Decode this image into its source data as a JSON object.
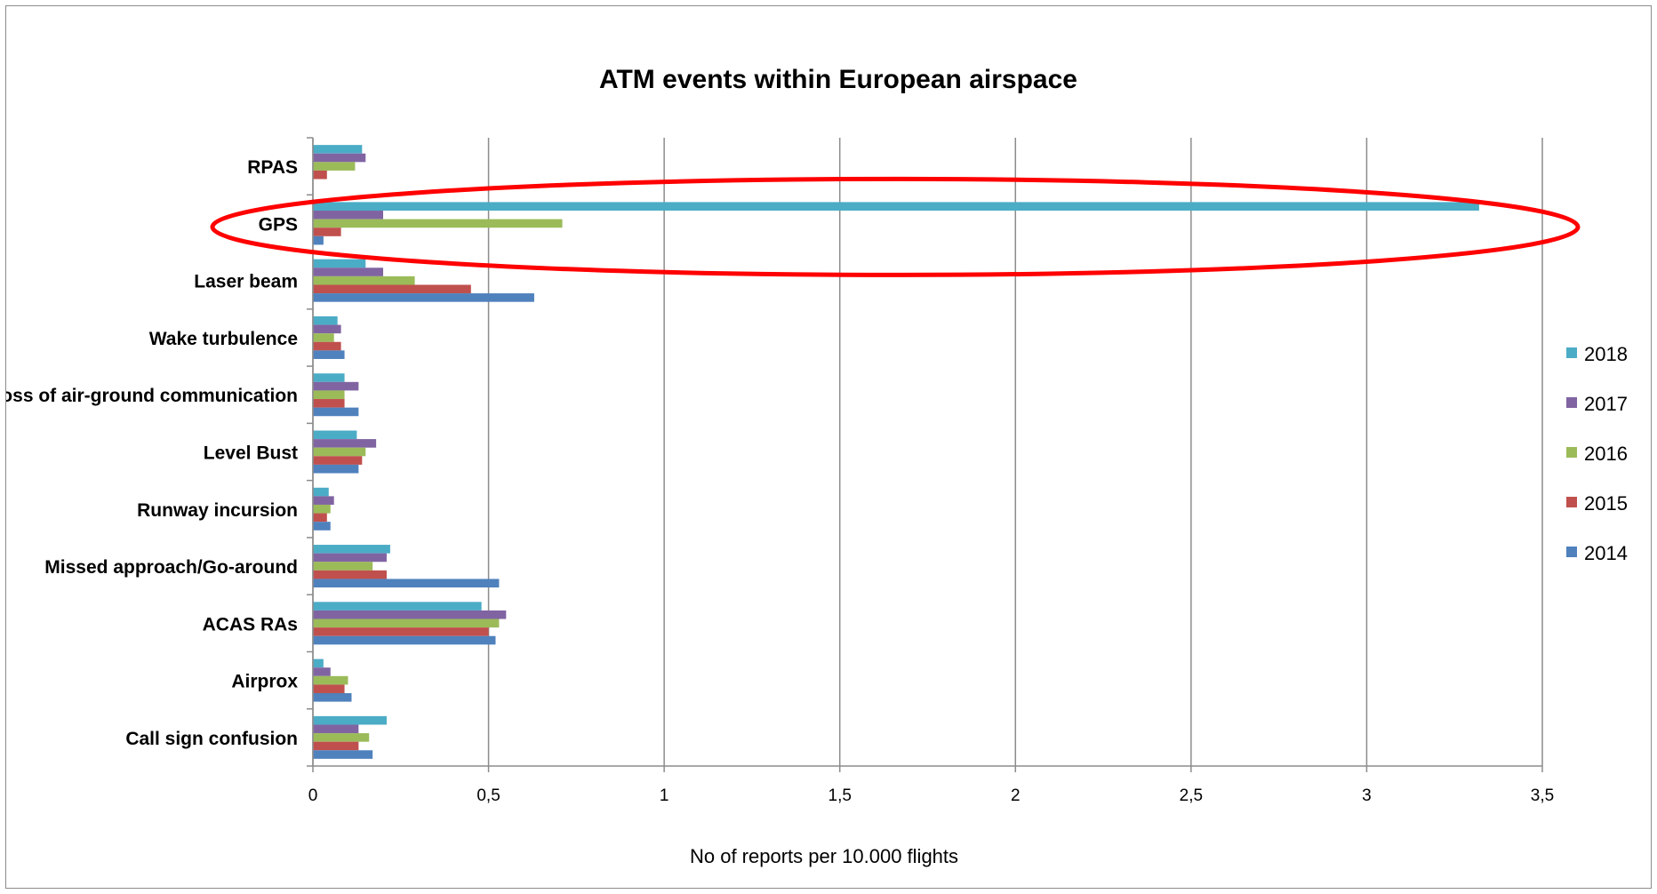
{
  "chart_data": {
    "type": "bar",
    "orientation": "horizontal",
    "title": "ATM events within European airspace",
    "xlabel": "No of reports per 10.000 flights",
    "ylabel": "",
    "xlim": [
      0,
      3.5
    ],
    "ticks": [
      0,
      0.5,
      1,
      1.5,
      2,
      2.5,
      3,
      3.5
    ],
    "tick_labels": [
      "0",
      "0,5",
      "1",
      "1,5",
      "2",
      "2,5",
      "3",
      "3,5"
    ],
    "grid": "vertical",
    "legend_position": "right",
    "categories": [
      "RPAS",
      "GPS",
      "Laser beam",
      "Wake turbulence",
      "Loss of air-ground communication",
      "Level Bust",
      "Runway incursion",
      "Missed approach/Go-around",
      "ACAS RAs",
      "Airprox",
      "Call sign confusion"
    ],
    "series": [
      {
        "name": "2018",
        "color": "#4BACC6",
        "values": [
          0.14,
          3.32,
          0.15,
          0.07,
          0.09,
          0.125,
          0.045,
          0.22,
          0.48,
          0.03,
          0.21
        ]
      },
      {
        "name": "2017",
        "color": "#8064A2",
        "values": [
          0.15,
          0.2,
          0.2,
          0.08,
          0.13,
          0.18,
          0.06,
          0.21,
          0.55,
          0.05,
          0.13
        ]
      },
      {
        "name": "2016",
        "color": "#9BBB59",
        "values": [
          0.12,
          0.71,
          0.29,
          0.06,
          0.09,
          0.15,
          0.05,
          0.17,
          0.53,
          0.1,
          0.16
        ]
      },
      {
        "name": "2015",
        "color": "#C0504D",
        "values": [
          0.04,
          0.08,
          0.45,
          0.08,
          0.09,
          0.14,
          0.04,
          0.21,
          0.5,
          0.09,
          0.13
        ]
      },
      {
        "name": "2014",
        "color": "#4F81BD",
        "values": [
          0.0,
          0.03,
          0.63,
          0.09,
          0.13,
          0.13,
          0.05,
          0.53,
          0.52,
          0.11,
          0.17
        ]
      }
    ],
    "annotations": [
      {
        "type": "ellipse",
        "target": "GPS",
        "color": "#FF0000"
      }
    ]
  }
}
